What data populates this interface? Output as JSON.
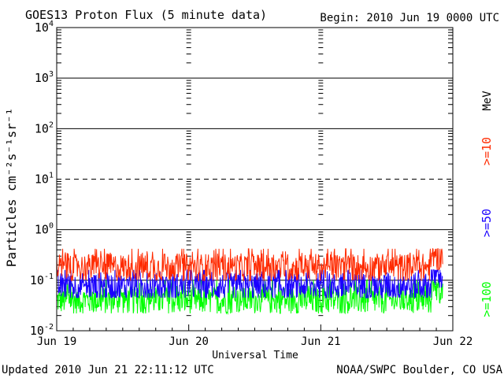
{
  "chart_data": {
    "type": "line",
    "title": "GOES13 Proton Flux (5 minute data)",
    "begin_label": "Begin: 2010 Jun 19 0000 UTC",
    "ylabel": "Particles cm⁻²s⁻¹sr⁻¹",
    "xlabel": "Universal Time",
    "y_scale": "log",
    "ylim": [
      0.01,
      10000
    ],
    "y_ticks": [
      {
        "base": "10",
        "exp": "4"
      },
      {
        "base": "10",
        "exp": "3"
      },
      {
        "base": "10",
        "exp": "2"
      },
      {
        "base": "10",
        "exp": "1"
      },
      {
        "base": "10",
        "exp": "0"
      },
      {
        "base": "10",
        "exp": "-1"
      },
      {
        "base": "10",
        "exp": "-2"
      }
    ],
    "x_range": [
      "2010-06-19 00:00",
      "2010-06-22 00:00"
    ],
    "x_ticks": [
      "Jun 19",
      "Jun 20",
      "Jun 21",
      "Jun 22"
    ],
    "data_end": "2010-06-21 22:10",
    "legend": {
      "unit": "MeV"
    },
    "series": [
      {
        "name": ">=10",
        "color": "#ff2a00",
        "typical": 0.18,
        "min": 0.08,
        "max": 0.42
      },
      {
        "name": ">=50",
        "color": "#1a00ff",
        "typical": 0.075,
        "min": 0.045,
        "max": 0.16
      },
      {
        "name": ">=100",
        "color": "#00ff00",
        "typical": 0.04,
        "min": 0.022,
        "max": 0.1
      }
    ]
  },
  "footer": {
    "updated": "Updated 2010 Jun 21 22:11:12 UTC",
    "credit": "NOAA/SWPC Boulder, CO USA"
  }
}
